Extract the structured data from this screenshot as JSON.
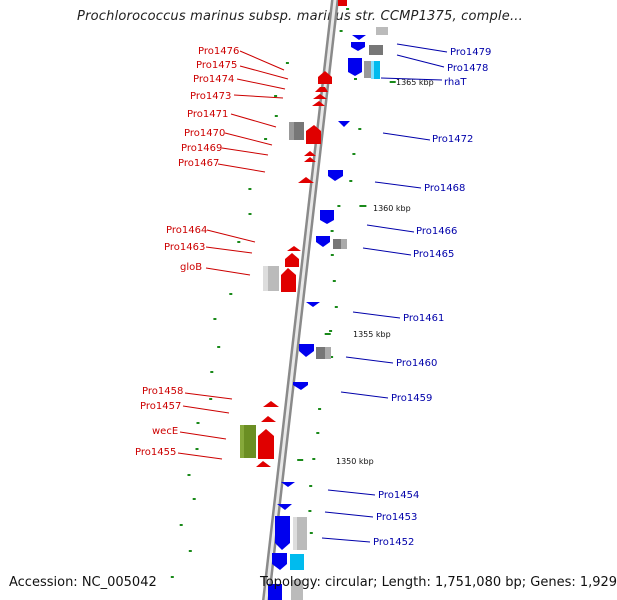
{
  "title": "Prochlorococcus marinus subsp. marinus str. CCMP1375, comple...",
  "footer": {
    "accession": "Accession: NC_005042",
    "topology": "Topology: circular; Length: 1,751,080 bp; Genes: 1,929"
  },
  "colors": {
    "backbone": "#8a8a8a",
    "reverse_strand_gene": "#e00000",
    "forward_strand_gene": "#0000ee",
    "gray_feature": "#888888",
    "cyan_feature": "#00bbee",
    "olive_feature": "#6b8e23",
    "tick": "#1a8a1a",
    "label_red": "#cc0000",
    "label_blue": "#0000aa"
  },
  "coordinate_labels": [
    "1365 kbp",
    "1360 kbp",
    "1355 kbp",
    "1350 kbp"
  ],
  "left_genes": [
    "Pro1476",
    "Pro1475",
    "Pro1474",
    "Pro1473",
    "Pro1471",
    "Pro1470",
    "Pro1469",
    "Pro1467",
    "Pro1464",
    "Pro1463",
    "gloB",
    "Pro1458",
    "Pro1457",
    "wecE",
    "Pro1455"
  ],
  "right_genes": [
    "Pro1479",
    "Pro1478",
    "rhaT",
    "Pro1472",
    "Pro1468",
    "Pro1466",
    "Pro1465",
    "Pro1461",
    "Pro1460",
    "Pro1459",
    "Pro1454",
    "Pro1453",
    "Pro1452"
  ]
}
